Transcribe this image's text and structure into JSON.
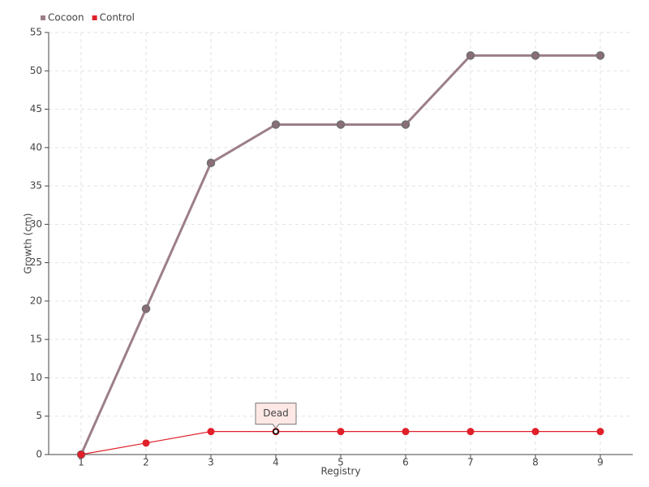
{
  "chart_data": {
    "type": "line",
    "x_label": "Registry",
    "y_label": "Growth (cm)",
    "categories": [
      "1",
      "2",
      "3",
      "4",
      "5",
      "6",
      "7",
      "8",
      "9"
    ],
    "series": [
      {
        "name": "Cocoon",
        "color": "#9c7f88",
        "values": [
          0,
          19,
          38,
          43,
          43,
          43,
          52,
          52,
          52
        ]
      },
      {
        "name": "Control",
        "color": "#e0202a",
        "values": [
          0,
          1.5,
          3,
          3,
          3,
          3,
          3,
          3,
          3
        ]
      }
    ],
    "ylim": [
      0,
      55
    ],
    "yticks": [
      0,
      5,
      10,
      15,
      20,
      25,
      30,
      35,
      40,
      45,
      50,
      55
    ],
    "grid": true,
    "legend": "top-left",
    "annotations": [
      {
        "text": "Dead",
        "x": "4",
        "y": 3
      }
    ]
  }
}
